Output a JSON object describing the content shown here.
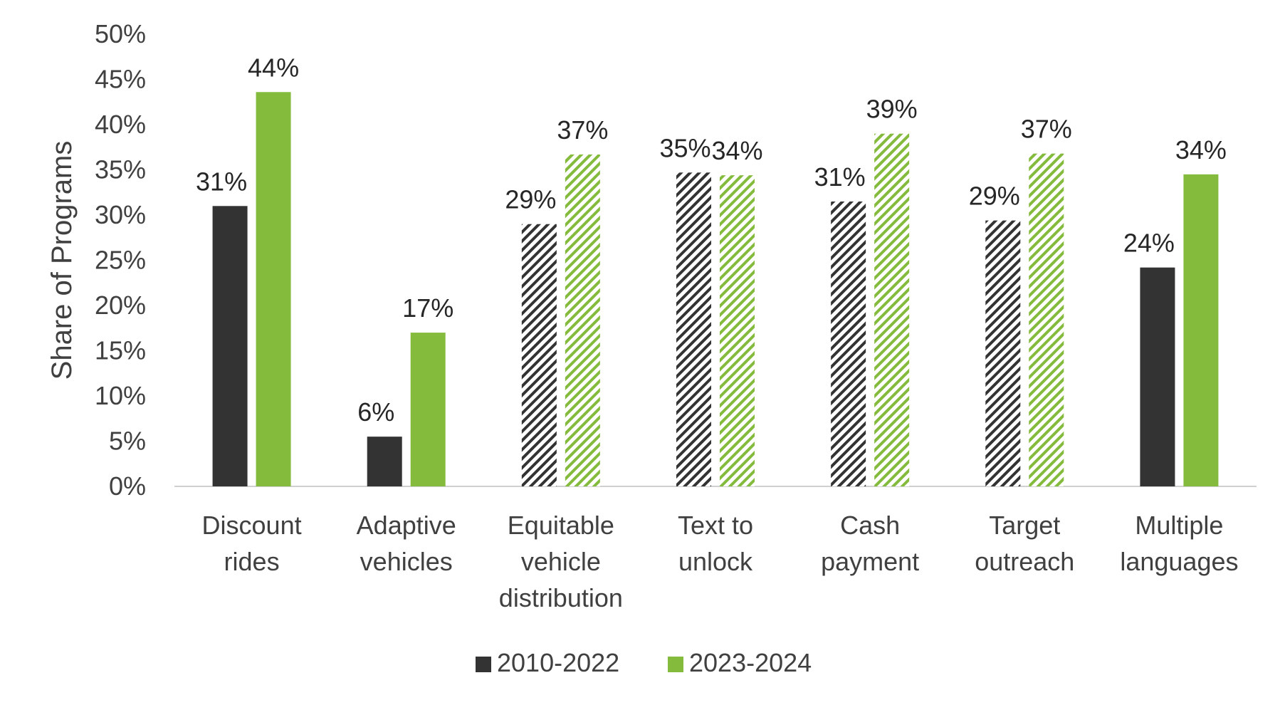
{
  "chart_data": {
    "type": "bar",
    "title": "",
    "xlabel": "",
    "ylabel": "Share of Programs",
    "ylim": [
      0,
      50
    ],
    "y_ticks": [
      0,
      5,
      10,
      15,
      20,
      25,
      30,
      35,
      40,
      45,
      50
    ],
    "y_tick_labels": [
      "0%",
      "5%",
      "10%",
      "15%",
      "20%",
      "25%",
      "30%",
      "35%",
      "40%",
      "45%",
      "50%"
    ],
    "grid": false,
    "legend_position": "bottom",
    "categories": [
      [
        "Discount",
        "rides"
      ],
      [
        "Adaptive",
        "vehicles"
      ],
      [
        "Equitable",
        "vehicle",
        "distribution"
      ],
      [
        "Text to",
        "unlock"
      ],
      [
        "Cash",
        "payment"
      ],
      [
        "Target",
        "outreach"
      ],
      [
        "Multiple",
        "languages"
      ]
    ],
    "hatched_categories": [
      false,
      false,
      true,
      true,
      true,
      true,
      false
    ],
    "series": [
      {
        "name": "2010-2022",
        "color": "#333333",
        "values": [
          31,
          5.5,
          29,
          34.7,
          31.5,
          29.4,
          24.2
        ],
        "labels": [
          "31%",
          "6%",
          "29%",
          "35%",
          "31%",
          "29%",
          "24%"
        ]
      },
      {
        "name": "2023-2024",
        "color": "#84bb3c",
        "values": [
          43.6,
          17,
          36.7,
          34.4,
          39,
          36.8,
          34.5
        ],
        "labels": [
          "44%",
          "17%",
          "37%",
          "34%",
          "39%",
          "37%",
          "34%"
        ]
      }
    ]
  }
}
